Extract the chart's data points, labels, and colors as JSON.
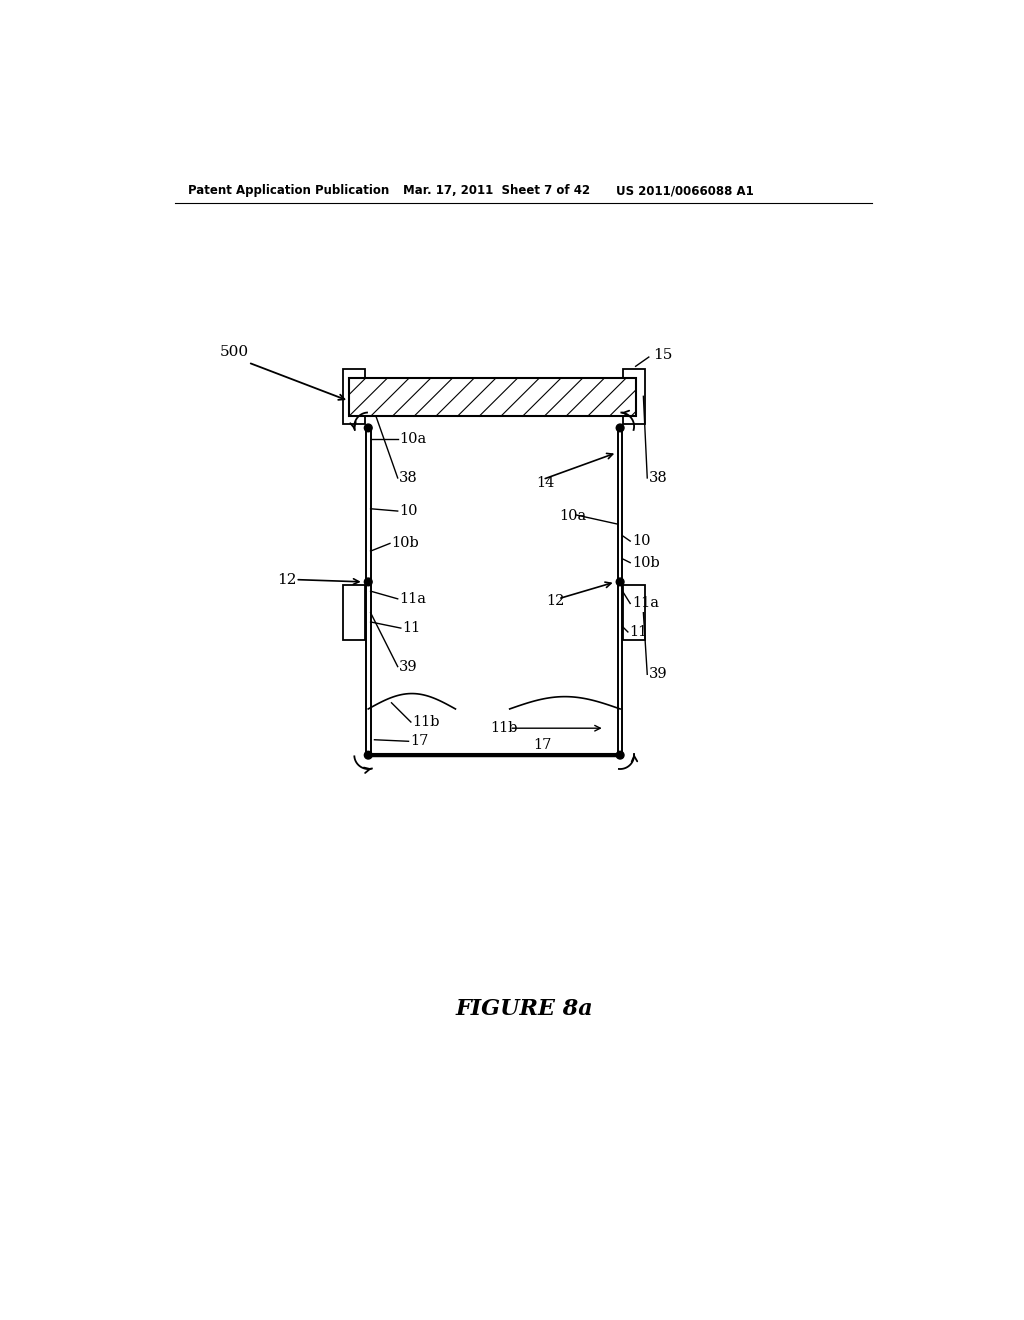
{
  "bg_color": "#ffffff",
  "header_left": "Patent Application Publication",
  "header_mid": "Mar. 17, 2011  Sheet 7 of 42",
  "header_right": "US 2011/0066088 A1",
  "figure_label": "FIGURE 8a",
  "lc": "#000000"
}
